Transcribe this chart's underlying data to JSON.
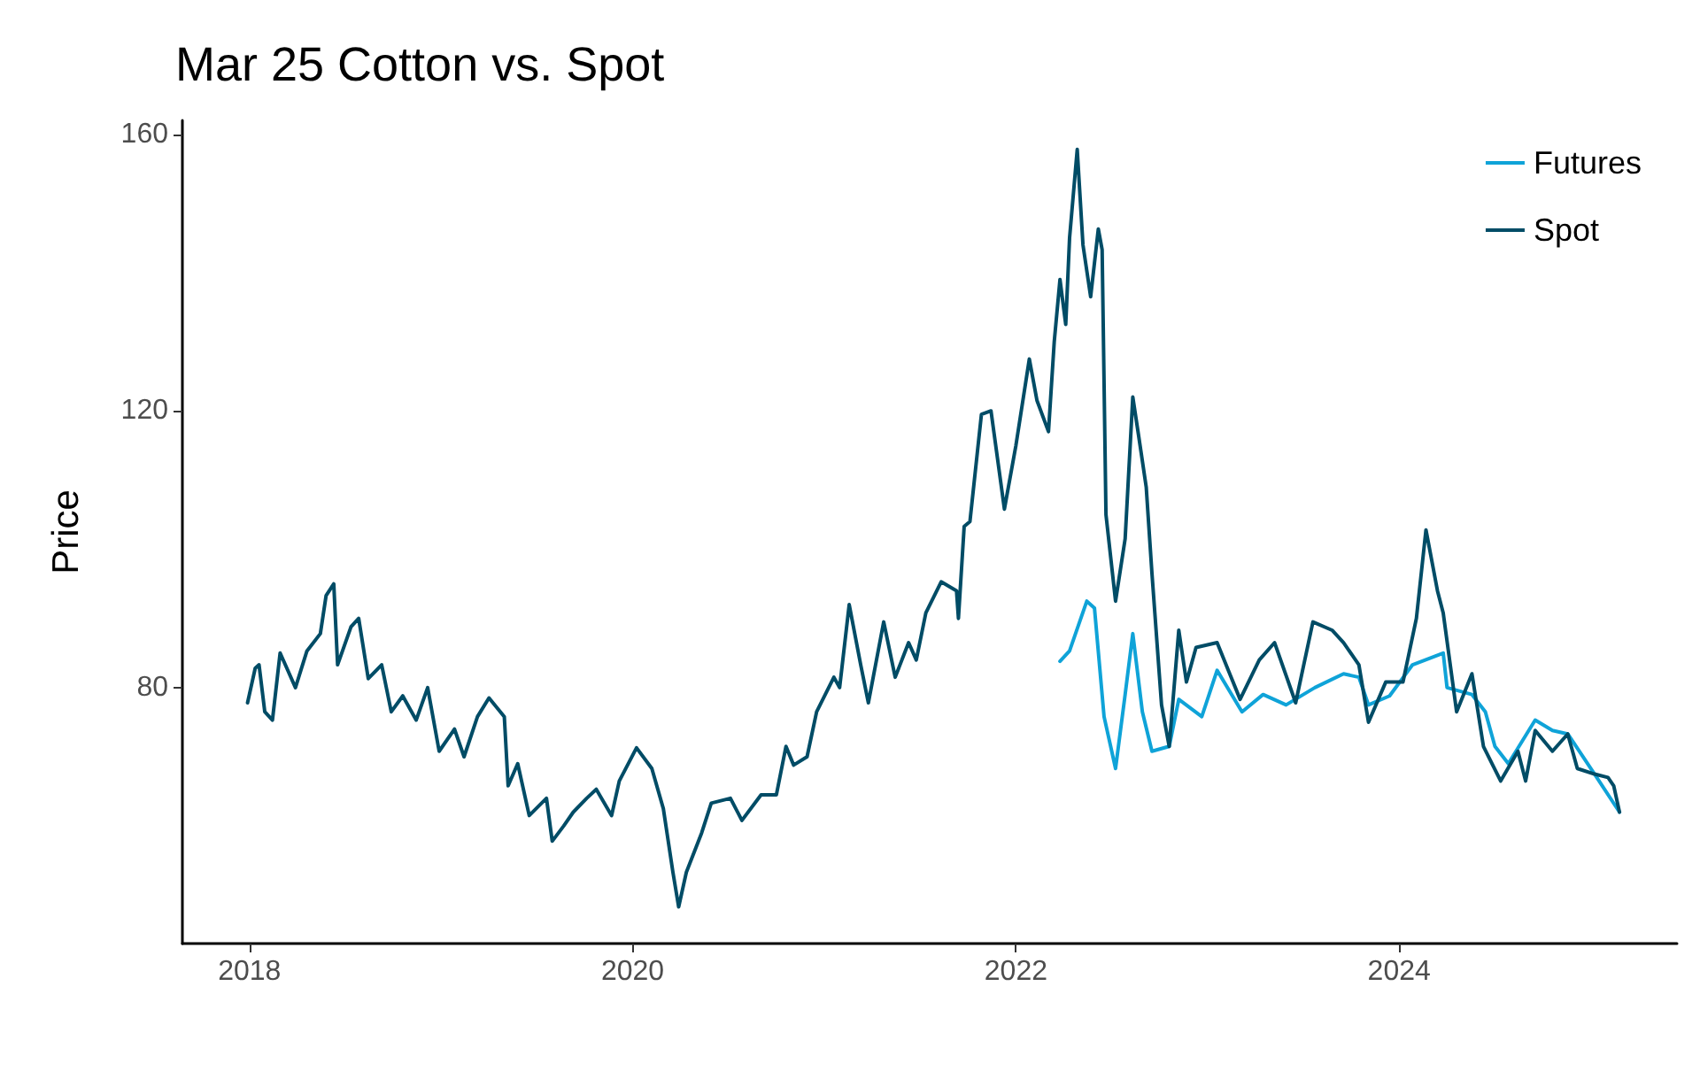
{
  "chart_data": {
    "type": "line",
    "title": "Mar 25 Cotton vs. Spot",
    "ylabel": "Price",
    "xlim": [
      2017.65,
      2025.45
    ],
    "xticks": [
      2018,
      2020,
      2022,
      2024
    ],
    "ylim": [
      43,
      162
    ],
    "yticks": [
      80,
      120,
      160
    ],
    "grid": false,
    "legend": "top right",
    "marker": "none",
    "line_style": "solid",
    "series": [
      {
        "name": "Futures",
        "color": "#0fa3d8",
        "x": [
          2022.23,
          2022.28,
          2022.37,
          2022.41,
          2022.46,
          2022.52,
          2022.57,
          2022.61,
          2022.66,
          2022.71,
          2022.8,
          2022.85,
          2022.97,
          2023.05,
          2023.18,
          2023.29,
          2023.41,
          2023.56,
          2023.71,
          2023.79,
          2023.84,
          2023.95,
          2024.07,
          2024.23,
          2024.25,
          2024.38,
          2024.45,
          2024.5,
          2024.57,
          2024.71,
          2024.8,
          2024.88,
          2025.02,
          2025.15
        ],
        "values": [
          83.8,
          85.3,
          92.5,
          91.5,
          75.8,
          68.3,
          79,
          87.8,
          76.5,
          70.8,
          71.5,
          78.3,
          75.8,
          82.5,
          76.5,
          79,
          77.5,
          80,
          82,
          81.5,
          77.5,
          78.8,
          83.3,
          85,
          80,
          79,
          76.5,
          71.5,
          69,
          75.3,
          73.8,
          73.3,
          67.5,
          62
        ]
      },
      {
        "name": "Spot",
        "color": "#004c66",
        "x": [
          2017.99,
          2018.03,
          2018.05,
          2018.08,
          2018.12,
          2018.16,
          2018.24,
          2018.3,
          2018.37,
          2018.4,
          2018.44,
          2018.46,
          2018.53,
          2018.57,
          2018.62,
          2018.69,
          2018.74,
          2018.8,
          2018.87,
          2018.93,
          2018.99,
          2019.07,
          2019.12,
          2019.19,
          2019.25,
          2019.33,
          2019.35,
          2019.4,
          2019.46,
          2019.55,
          2019.58,
          2019.64,
          2019.69,
          2019.76,
          2019.81,
          2019.89,
          2019.93,
          2020.02,
          2020.1,
          2020.16,
          2020.21,
          2020.24,
          2020.28,
          2020.36,
          2020.41,
          2020.51,
          2020.57,
          2020.67,
          2020.75,
          2020.8,
          2020.84,
          2020.91,
          2020.96,
          2021.05,
          2021.08,
          2021.13,
          2021.19,
          2021.23,
          2021.31,
          2021.37,
          2021.44,
          2021.48,
          2021.53,
          2021.61,
          2021.69,
          2021.7,
          2021.73,
          2021.76,
          2021.82,
          2021.87,
          2021.94,
          2022.0,
          2022.07,
          2022.11,
          2022.17,
          2022.2,
          2022.23,
          2022.26,
          2022.28,
          2022.32,
          2022.35,
          2022.39,
          2022.43,
          2022.45,
          2022.47,
          2022.52,
          2022.57,
          2022.61,
          2022.64,
          2022.68,
          2022.71,
          2022.76,
          2022.8,
          2022.85,
          2022.89,
          2022.94,
          2023.05,
          2023.17,
          2023.27,
          2023.35,
          2023.46,
          2023.55,
          2023.65,
          2023.71,
          2023.79,
          2023.84,
          2023.93,
          2024.02,
          2024.09,
          2024.14,
          2024.2,
          2024.23,
          2024.3,
          2024.38,
          2024.44,
          2024.53,
          2024.62,
          2024.66,
          2024.71,
          2024.8,
          2024.88,
          2024.93,
          2025.02,
          2025.09,
          2025.12,
          2025.15
        ],
        "values": [
          77.8,
          82.8,
          83.3,
          76.5,
          75.3,
          85,
          80,
          85.3,
          87.8,
          93.3,
          95,
          83.3,
          88.8,
          90,
          81.3,
          83.3,
          76.5,
          78.8,
          75.3,
          80,
          70.8,
          74,
          70,
          75.8,
          78.5,
          75.8,
          65.8,
          69,
          61.5,
          64,
          57.8,
          60,
          62,
          64,
          65.3,
          61.5,
          66.5,
          71.3,
          68.3,
          62.5,
          53.3,
          48.3,
          53.3,
          59,
          63.3,
          64,
          60.8,
          64.5,
          64.5,
          71.5,
          68.8,
          70,
          76.5,
          81.5,
          80,
          92,
          83.3,
          77.8,
          89.5,
          81.5,
          86.5,
          84,
          90.8,
          95.3,
          94,
          90,
          103.3,
          104,
          119.5,
          120,
          105.8,
          115,
          127.5,
          121.5,
          117,
          130,
          139,
          132.5,
          145,
          157.8,
          144,
          136.5,
          146.3,
          143.3,
          105,
          92.5,
          101.5,
          122,
          116.5,
          109,
          96.5,
          77.5,
          71.5,
          88.3,
          80.8,
          85.8,
          86.5,
          78.3,
          84,
          86.5,
          77.8,
          89.5,
          88.3,
          86.5,
          83.3,
          75,
          80.8,
          80.8,
          90,
          102.8,
          94,
          90.8,
          76.5,
          82,
          71.5,
          66.5,
          70.8,
          66.5,
          73.8,
          70.8,
          73.3,
          68.3,
          67.5,
          67,
          65.8,
          62
        ]
      }
    ]
  }
}
